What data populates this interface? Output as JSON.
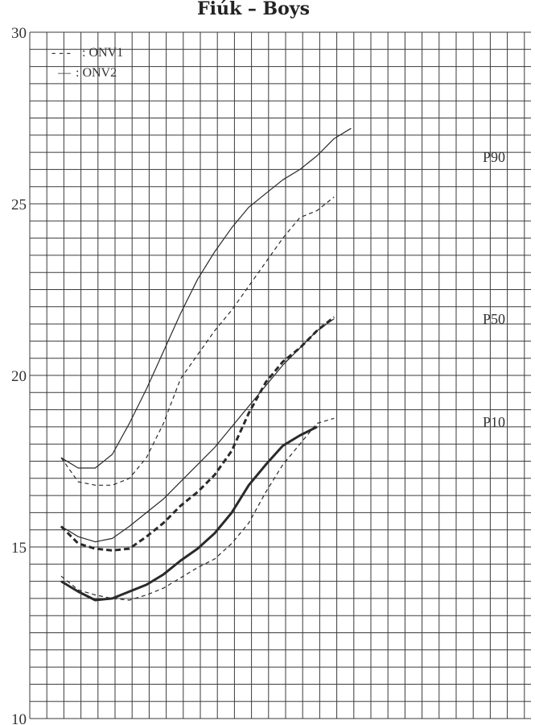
{
  "chart_data": {
    "type": "line",
    "title": "Fiúk – Boys",
    "xlabel": "",
    "ylabel": "",
    "ylim": [
      10,
      30
    ],
    "y_ticks": [
      "10",
      "15",
      "20",
      "25",
      "30"
    ],
    "grid": true,
    "legend_position": "top-left",
    "legend": [
      {
        "marker": "- - -",
        "label": ": ONV1",
        "style": "dashed"
      },
      {
        "marker": "—",
        "label": ": ONV2",
        "style": "solid"
      }
    ],
    "curve_labels": [
      "P90",
      "P50",
      "P10"
    ],
    "x_steps": [
      0,
      1,
      2,
      3,
      4,
      5,
      6,
      7,
      8,
      9,
      10,
      11,
      12,
      13,
      14,
      15,
      16,
      17,
      18,
      19,
      20,
      21
    ],
    "series": [
      {
        "name": "ONV1 P90",
        "style": "dashed",
        "weight": "thin",
        "values": [
          17.6,
          16.9,
          16.8,
          16.8,
          17.0,
          17.6,
          18.6,
          19.9,
          20.6,
          21.3,
          21.9,
          22.6,
          23.3,
          24.0,
          24.6,
          24.8,
          25.2,
          null,
          null,
          null,
          null,
          null
        ]
      },
      {
        "name": "ONV2 P90",
        "style": "solid",
        "weight": "thin",
        "values": [
          17.6,
          17.3,
          17.3,
          17.7,
          18.6,
          19.6,
          20.7,
          21.8,
          22.8,
          23.6,
          24.3,
          24.9,
          25.3,
          25.7,
          26.0,
          26.4,
          26.9,
          27.2,
          null,
          null,
          null,
          null
        ]
      },
      {
        "name": "ONV1 P50",
        "style": "dashed",
        "weight": "bold",
        "values": [
          15.6,
          15.1,
          14.95,
          14.9,
          14.95,
          15.3,
          15.7,
          16.2,
          16.6,
          17.1,
          17.8,
          18.9,
          19.8,
          20.4,
          20.8,
          21.3,
          21.7,
          null,
          null,
          null,
          null,
          null
        ]
      },
      {
        "name": "ONV2 P50",
        "style": "solid",
        "weight": "thin",
        "values": [
          15.6,
          15.3,
          15.15,
          15.25,
          15.6,
          16.0,
          16.4,
          16.9,
          17.4,
          17.9,
          18.5,
          19.1,
          19.7,
          20.3,
          20.8,
          21.3,
          21.65,
          null,
          null,
          null,
          null,
          null
        ]
      },
      {
        "name": "ONV1 P10",
        "style": "dashed",
        "weight": "thin",
        "values": [
          14.15,
          13.75,
          13.6,
          13.5,
          13.45,
          13.6,
          13.8,
          14.1,
          14.4,
          14.65,
          15.1,
          15.7,
          16.6,
          17.4,
          18.0,
          18.6,
          18.75,
          null,
          null,
          null,
          null,
          null
        ]
      },
      {
        "name": "ONV2 P10",
        "style": "solid",
        "weight": "bold",
        "values": [
          14.0,
          13.7,
          13.45,
          13.5,
          13.7,
          13.9,
          14.2,
          14.6,
          14.95,
          15.4,
          16.0,
          16.8,
          17.4,
          17.95,
          18.25,
          18.5,
          null,
          null,
          null,
          null,
          null,
          null
        ]
      }
    ]
  }
}
